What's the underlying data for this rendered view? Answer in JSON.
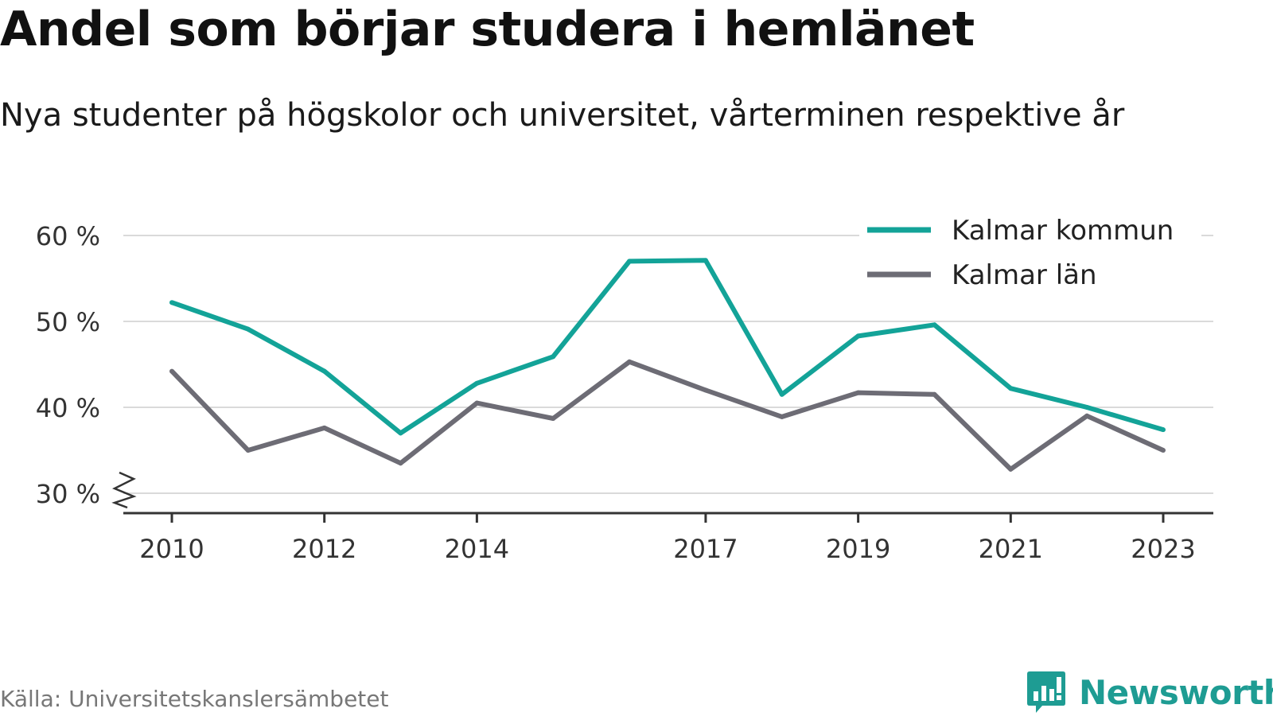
{
  "header": {
    "title": "Andel som börjar studera i hemlänet",
    "subtitle": "Nya studenter på högskolor och universitet, vårterminen respektive år"
  },
  "footer": {
    "source": "Källa: Universitetskanslersämbetet",
    "brand": "Newsworthy",
    "brand_icon": "newsworthy-logo-icon",
    "brand_color": "#1e9c93"
  },
  "chart_data": {
    "type": "line",
    "x": [
      2010,
      2011,
      2012,
      2013,
      2014,
      2015,
      2016,
      2017,
      2018,
      2019,
      2020,
      2021,
      2022,
      2023
    ],
    "xticks": [
      "2010",
      "2012",
      "2014",
      "2017",
      "2019",
      "2021",
      "2023"
    ],
    "yticks": [
      30,
      40,
      50,
      60
    ],
    "ytick_labels": [
      "30 %",
      "40 %",
      "50 %",
      "60 %"
    ],
    "ylim": [
      28,
      62
    ],
    "axis_break": true,
    "grid": true,
    "legend_position": "top-right",
    "series": [
      {
        "name": "Kalmar kommun",
        "color": "#13a398",
        "values": [
          52.2,
          49.1,
          44.2,
          37.0,
          42.8,
          45.9,
          57.0,
          57.1,
          41.5,
          48.3,
          49.6,
          42.2,
          40.0,
          37.4
        ]
      },
      {
        "name": "Kalmar län",
        "color": "#6d6c75",
        "values": [
          44.2,
          35.0,
          37.6,
          33.5,
          40.5,
          38.7,
          45.3,
          42.0,
          38.9,
          41.7,
          41.5,
          32.8,
          39.0,
          35.0
        ]
      }
    ]
  }
}
